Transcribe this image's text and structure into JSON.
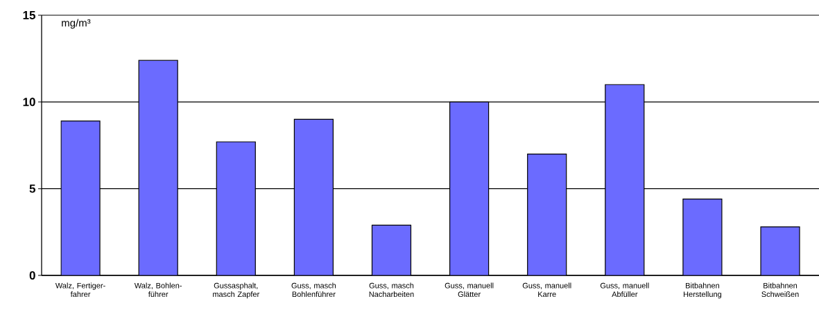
{
  "chart_data": {
    "type": "bar",
    "ylabel": "mg/m³",
    "categories": [
      "Walz, Fertiger-fahrer",
      "Walz, Bohlen-führer",
      "Gussasphalt, masch Zapfer",
      "Guss, masch Bohlenführer",
      "Guss, masch Nacharbeiten",
      "Guss, manuell Glätter",
      "Guss, manuell Karre",
      "Guss, manuell Abfüller",
      "Bitbahnen Herstellung",
      "Bitbahnen Schweißen"
    ],
    "values": [
      8.9,
      12.4,
      7.7,
      9.0,
      2.9,
      10.0,
      7.0,
      11.0,
      4.4,
      2.8
    ],
    "color": "#6b6bff",
    "ylim": [
      0,
      15
    ],
    "yticks": [
      0,
      5,
      10,
      15
    ],
    "grid": "y"
  }
}
